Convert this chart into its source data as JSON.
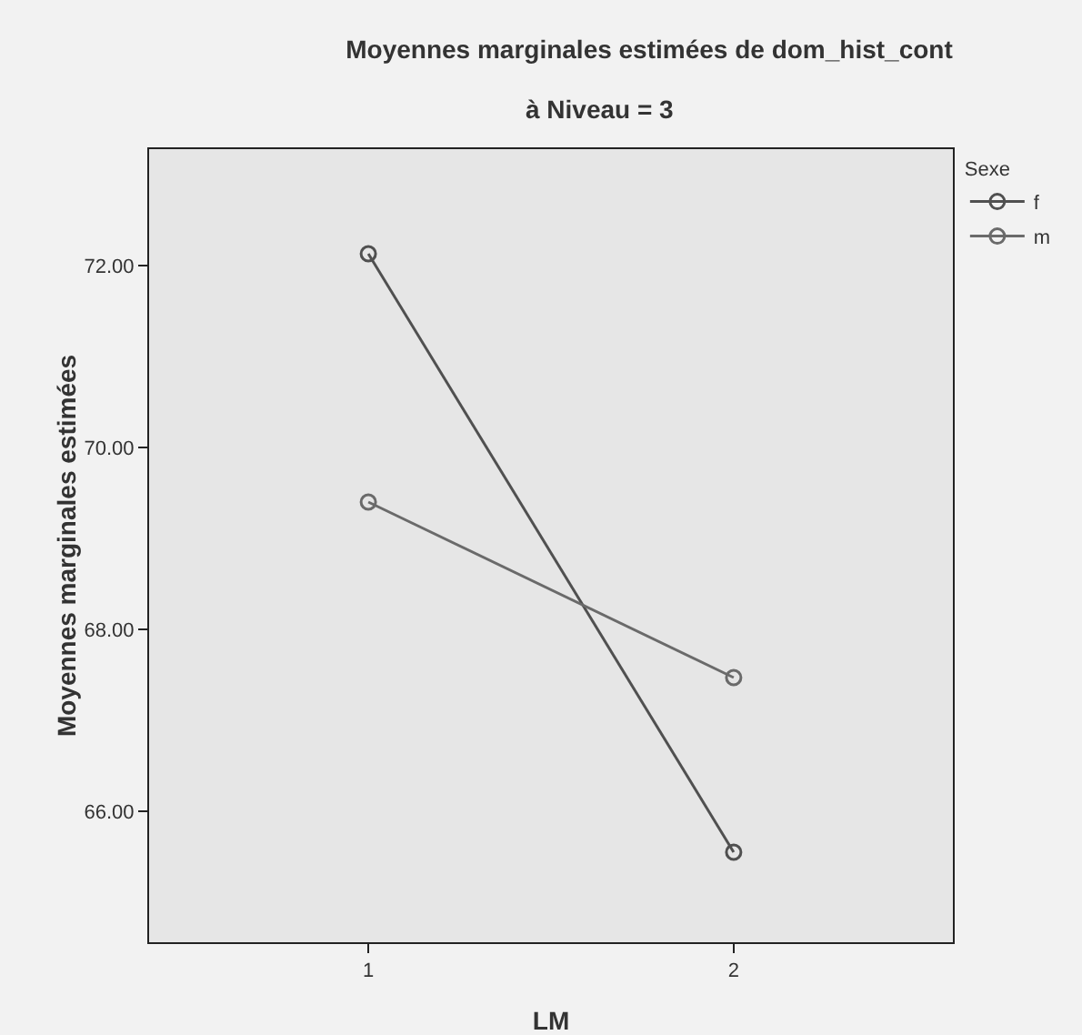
{
  "chart_data": {
    "type": "line",
    "title": "Moyennes marginales estimées de dom_hist_cont",
    "subtitle": "à Niveau = 3",
    "xlabel": "LM",
    "ylabel": "Moyennes marginales estimées",
    "legend_title": "Sexe",
    "categories": [
      "1",
      "2"
    ],
    "series": [
      {
        "name": "f",
        "color": "#505050",
        "values": [
          72.13,
          65.55
        ]
      },
      {
        "name": "m",
        "color": "#6a6a6a",
        "values": [
          69.4,
          67.47
        ]
      }
    ],
    "ylim": [
      64.56,
      73.28
    ],
    "yticks": [
      {
        "value": 66,
        "label": "66.00"
      },
      {
        "value": 68,
        "label": "68.00"
      },
      {
        "value": 70,
        "label": "70.00"
      },
      {
        "value": 72,
        "label": "72.00"
      }
    ],
    "grid": false,
    "legend": "top right",
    "marker": "circle",
    "line_style": "solid"
  }
}
